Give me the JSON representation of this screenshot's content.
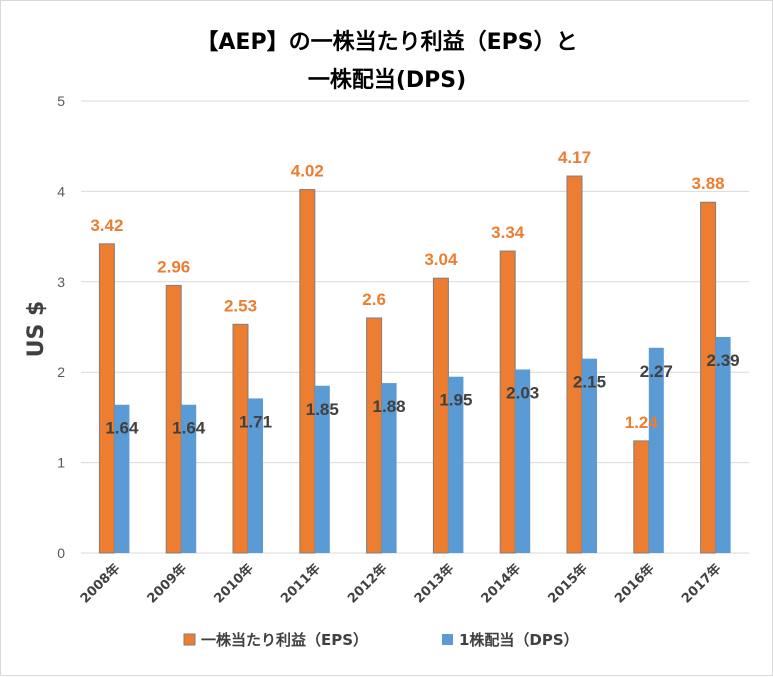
{
  "title_lines": [
    "【AEP】の一株当たり利益（EPS）と",
    "一株配当(DPS)"
  ],
  "colors": {
    "eps": "#ed7d31",
    "dps": "#5b9bd5",
    "grid": "#d9d9d9"
  },
  "chart_data": {
    "type": "bar",
    "title": "【AEP】の一株当たり利益（EPS）と一株配当(DPS)",
    "ylabel": "US $",
    "xlabel": "",
    "ylim": [
      0,
      5
    ],
    "yticks": [
      "0",
      "1",
      "2",
      "3",
      "4",
      "5"
    ],
    "grid": true,
    "legend_position": "bottom",
    "categories": [
      "2008年",
      "2009年",
      "2010年",
      "2011年",
      "2012年",
      "2013年",
      "2014年",
      "2015年",
      "2016年",
      "2017年"
    ],
    "series": [
      {
        "name": "一株当たり利益（EPS）",
        "values": [
          3.42,
          2.96,
          2.53,
          4.02,
          2.6,
          3.04,
          3.34,
          4.17,
          1.24,
          3.88
        ],
        "labels": [
          "3.42",
          "2.96",
          "2.53",
          "4.02",
          "2.6",
          "3.04",
          "3.34",
          "4.17",
          "1.24",
          "3.88"
        ]
      },
      {
        "name": "1株配当（DPS）",
        "values": [
          1.64,
          1.64,
          1.71,
          1.85,
          1.88,
          1.95,
          2.03,
          2.15,
          2.27,
          2.39
        ],
        "labels": [
          "1.64",
          "1.64",
          "1.71",
          "1.85",
          "1.88",
          "1.95",
          "2.03",
          "2.15",
          "2.27",
          "2.39"
        ]
      }
    ]
  }
}
